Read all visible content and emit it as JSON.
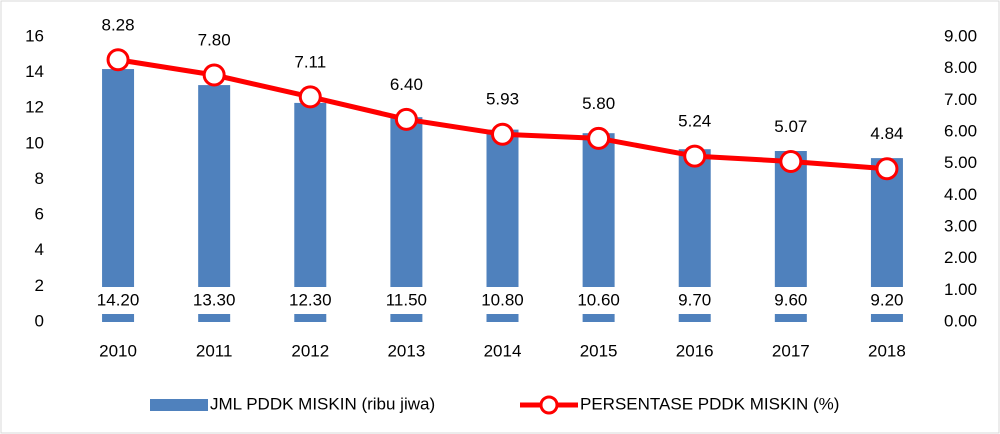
{
  "chart_data": {
    "type": "bar",
    "categories": [
      "2010",
      "2011",
      "2012",
      "2013",
      "2014",
      "2015",
      "2016",
      "2017",
      "2018"
    ],
    "series": [
      {
        "name": "JML PDDK MISKIN (ribu jiwa)",
        "type": "bar",
        "color": "#4f81bd",
        "values": [
          14.2,
          13.3,
          12.3,
          11.5,
          10.8,
          10.6,
          9.7,
          9.6,
          9.2
        ],
        "value_labels": [
          "14.20",
          "13.30",
          "12.30",
          "11.50",
          "10.80",
          "10.60",
          "9.70",
          "9.60",
          "9.20"
        ]
      },
      {
        "name": "PERSENTASE PDDK MISKIN (%)",
        "type": "line",
        "axis": "y2",
        "color": "#ff0000",
        "values": [
          8.28,
          7.8,
          7.11,
          6.4,
          5.93,
          5.8,
          5.24,
          5.07,
          4.84
        ],
        "value_labels": [
          "8.28",
          "7.80",
          "7.11",
          "6.40",
          "5.93",
          "5.80",
          "5.24",
          "5.07",
          "4.84"
        ]
      }
    ],
    "ylim": [
      0,
      16
    ],
    "yticks": [
      0,
      2,
      4,
      6,
      8,
      10,
      12,
      14,
      16
    ],
    "y2lim": [
      0,
      9
    ],
    "y2ticks": [
      {
        "value": 0,
        "label": "0.00"
      },
      {
        "value": 1,
        "label": "1.00"
      },
      {
        "value": 2,
        "label": "2.00"
      },
      {
        "value": 3,
        "label": "3.00"
      },
      {
        "value": 4,
        "label": "4.00"
      },
      {
        "value": 5,
        "label": "5.00"
      },
      {
        "value": 6,
        "label": "6.00"
      },
      {
        "value": 7,
        "label": "7.00"
      },
      {
        "value": 8,
        "label": "8.00"
      },
      {
        "value": 9,
        "label": "9.00"
      }
    ],
    "grid": false,
    "legend": "bottom"
  }
}
